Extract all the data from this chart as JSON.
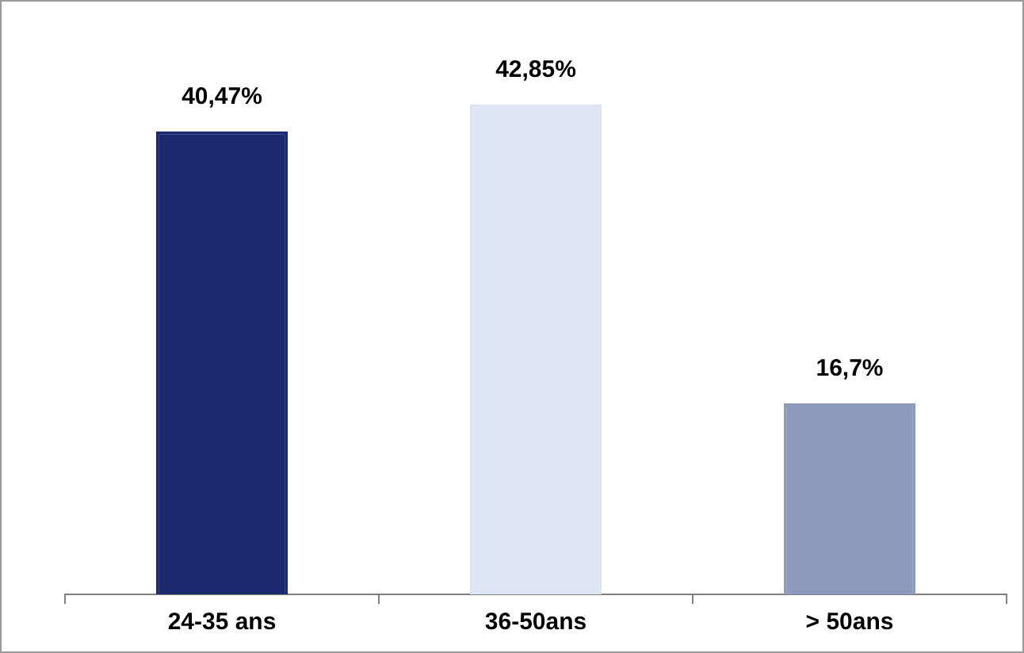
{
  "chart_data": {
    "type": "bar",
    "relative": false,
    "categories": [
      "24-35 ans",
      "36-50ans",
      "> 50ans"
    ],
    "values": [
      40.47,
      42.85,
      16.7
    ],
    "value_labels": [
      "40,47%",
      "42,85%",
      "16,7%"
    ],
    "colors": [
      "#1b2a6e",
      "#dde4f2",
      "#8d99bd"
    ],
    "legend": false,
    "grid": false
  }
}
